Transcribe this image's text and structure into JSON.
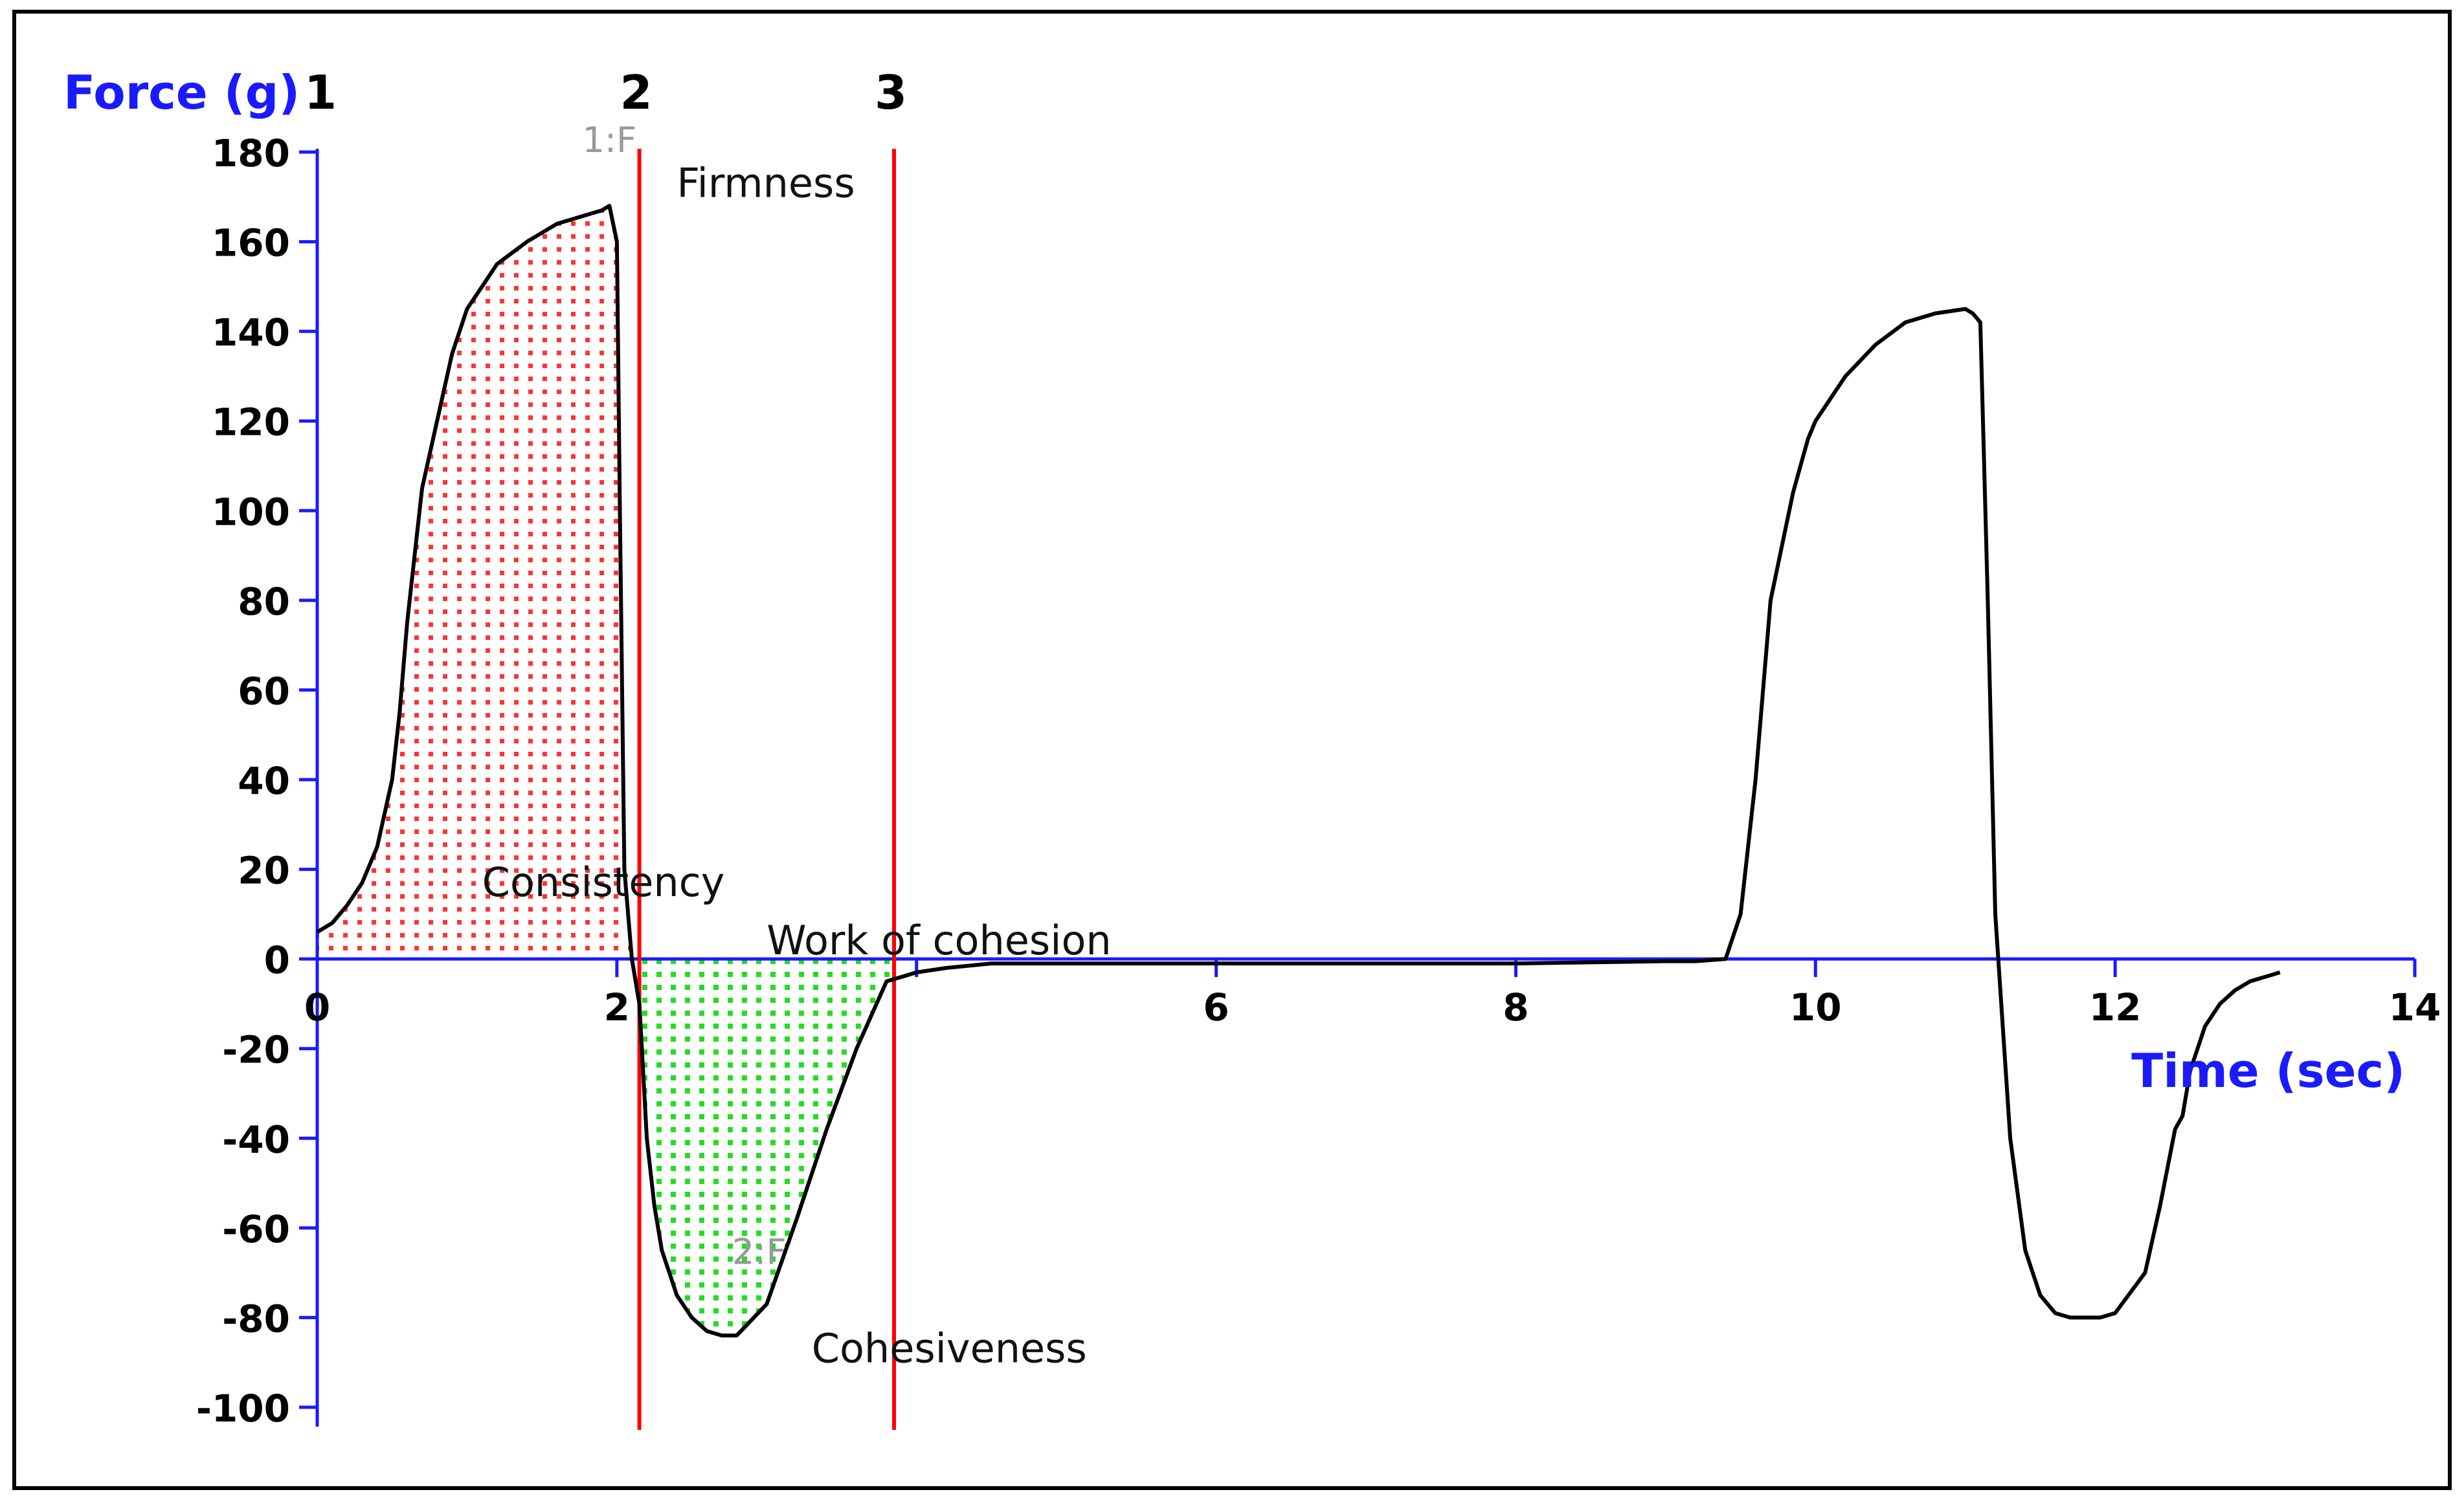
{
  "chart_data": {
    "type": "line",
    "xlabel": "Time (sec)",
    "ylabel": "Force (g)",
    "xlim": [
      0,
      14
    ],
    "ylim": [
      -100,
      180
    ],
    "x_ticks": [
      0,
      2,
      4,
      6,
      8,
      10,
      12,
      14
    ],
    "x_tick_labels": [
      "0",
      "2",
      "",
      "6",
      "8",
      "10",
      "12",
      "14"
    ],
    "y_ticks": [
      180,
      160,
      140,
      120,
      100,
      80,
      60,
      40,
      20,
      0,
      -20,
      -40,
      -60,
      -80,
      -100
    ],
    "y_tick_labels": [
      "180",
      "160",
      "140",
      "120",
      "100",
      "80",
      "60",
      "40",
      "20",
      "0",
      "-20",
      "-40",
      "-60",
      "-80",
      "-100"
    ],
    "grid": false,
    "series": [
      {
        "x": [
          0,
          0.1,
          0.2,
          0.3,
          0.4,
          0.5,
          0.55,
          0.6,
          0.65,
          0.7,
          0.8,
          0.9,
          1.0,
          1.1,
          1.2,
          1.4,
          1.6,
          1.8,
          1.9,
          1.95,
          2.0,
          2.02,
          2.05,
          2.1,
          2.15,
          2.2,
          2.25,
          2.3,
          2.35,
          2.4,
          2.5,
          2.6,
          2.7,
          2.8,
          3.0,
          3.2,
          3.4,
          3.6,
          3.8,
          3.9,
          4.0,
          4.2,
          4.5,
          5.0,
          6.0,
          7.0,
          8.0,
          9.0,
          9.2,
          9.4,
          9.5,
          9.6,
          9.7,
          9.8,
          9.85,
          9.9,
          9.95,
          10.0,
          10.2,
          10.4,
          10.6,
          10.8,
          11.0,
          11.05,
          11.1,
          11.15,
          11.2,
          11.3,
          11.4,
          11.5,
          11.6,
          11.7,
          11.8,
          11.9,
          12.0,
          12.2,
          12.3,
          12.4,
          12.45,
          12.5,
          12.6,
          12.7,
          12.8,
          12.9,
          13.0,
          13.1
        ],
        "y": [
          6,
          8,
          12,
          17,
          25,
          40,
          55,
          75,
          90,
          105,
          120,
          135,
          145,
          150,
          155,
          160,
          164,
          166,
          167,
          168,
          160,
          100,
          20,
          0,
          -10,
          -40,
          -55,
          -65,
          -70,
          -75,
          -80,
          -83,
          -84,
          -84,
          -77,
          -58,
          -38,
          -20,
          -5,
          -4,
          -3,
          -2,
          -1,
          -1,
          -1,
          -1,
          -1,
          -0.5,
          -0.5,
          0,
          10,
          40,
          80,
          96,
          104,
          110,
          116,
          120,
          130,
          137,
          142,
          144,
          145,
          144,
          142,
          80,
          10,
          -40,
          -65,
          -75,
          -79,
          -80,
          -80,
          -80,
          -79,
          -70,
          -55,
          -38,
          -35,
          -25,
          -15,
          -10,
          -7,
          -5,
          -4,
          -3
        ]
      }
    ],
    "cursor_lines": [
      {
        "label": "1",
        "x": 0
      },
      {
        "label": "2",
        "x": 2.15
      },
      {
        "label": "3",
        "x": 3.85
      }
    ],
    "shaded_regions": [
      {
        "x_start": 0,
        "x_end": 2.15,
        "color": "#ff3333",
        "pattern": "dotted"
      },
      {
        "x_start": 2.15,
        "x_end": 3.85,
        "color": "#22dd22",
        "pattern": "dotted"
      }
    ],
    "annotations": [
      {
        "text": "Firmness",
        "x": 2.4,
        "y": 170
      },
      {
        "text": "Consistency",
        "x": 1.1,
        "y": 14
      },
      {
        "text": "Work of cohesion",
        "x": 3.0,
        "y": 1
      },
      {
        "text": "Cohesiveness",
        "x": 3.3,
        "y": -90
      },
      {
        "text": "1:F",
        "x": 1.95,
        "y": 180
      },
      {
        "text": "2:F",
        "x": 2.95,
        "y": -68
      }
    ],
    "colors": {
      "axis": "#1a1aff",
      "curve": "#000000",
      "cursor": "#ff0000",
      "red_fill": "#ff3333",
      "green_fill": "#22dd22",
      "marker_label": "#999999"
    }
  }
}
